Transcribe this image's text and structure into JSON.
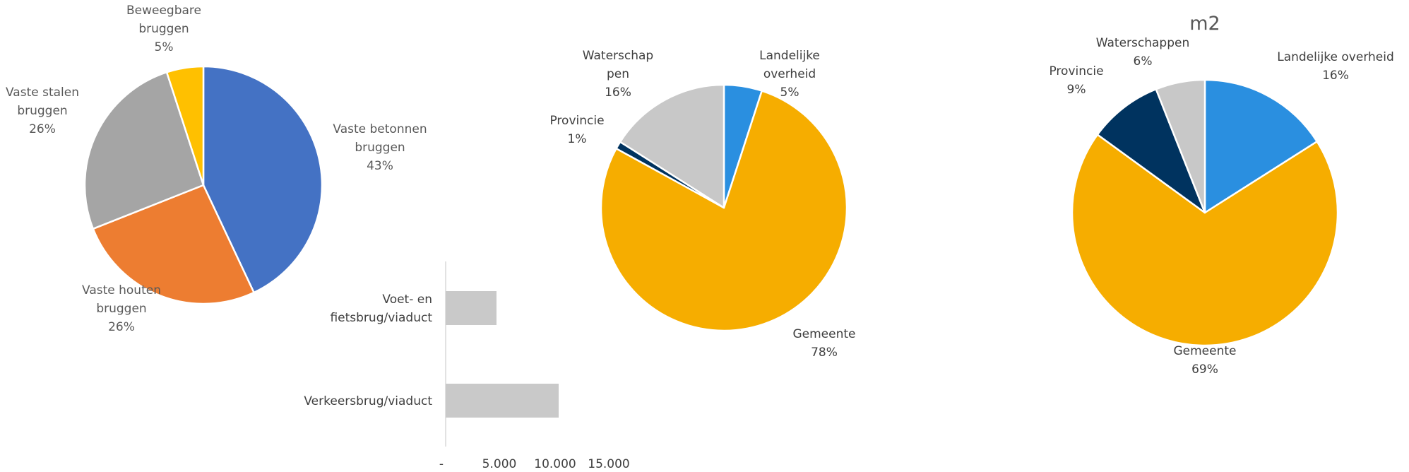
{
  "chart_data": [
    {
      "type": "pie",
      "title": "",
      "slices": [
        {
          "label": [
            "Vaste betonnen",
            "bruggen"
          ],
          "pct": "43%",
          "value": 43,
          "color": "#4472c4"
        },
        {
          "label": [
            "Vaste houten",
            "bruggen"
          ],
          "pct": "26%",
          "value": 26,
          "color": "#ed7d31"
        },
        {
          "label": [
            "Vaste stalen",
            "bruggen"
          ],
          "pct": "26%",
          "value": 26,
          "color": "#a5a5a5"
        },
        {
          "label": [
            "Beweegbare",
            "bruggen"
          ],
          "pct": "5%",
          "value": 5,
          "color": "#ffc000"
        }
      ]
    },
    {
      "type": "bar",
      "orientation": "horizontal",
      "categories": [
        [
          "Voet- en",
          "fietsbrug/viaduct"
        ],
        [
          "Verkeersbrug/viaduct"
        ]
      ],
      "values": [
        4500,
        10000
      ],
      "xlim": [
        0,
        15000
      ],
      "xticks": [
        "-",
        "5.000",
        "10.000",
        "15.000"
      ],
      "color": "#c9c9c9"
    },
    {
      "type": "pie",
      "title": "",
      "slices": [
        {
          "label": [
            "Landelijke",
            "overheid"
          ],
          "pct": "5%",
          "value": 5,
          "color": "#2a8fe0"
        },
        {
          "label": [
            "Gemeente"
          ],
          "pct": "78%",
          "value": 78,
          "color": "#f6ad00"
        },
        {
          "label": [
            "Provincie"
          ],
          "pct": "1%",
          "value": 1,
          "color": "#00335f"
        },
        {
          "label": [
            "Waterschap",
            "pen"
          ],
          "pct": "16%",
          "value": 16,
          "color": "#c8c8c8"
        }
      ]
    },
    {
      "type": "pie",
      "title": "m2",
      "slices": [
        {
          "label": [
            "Landelijke overheid"
          ],
          "pct": "16%",
          "value": 16,
          "color": "#2a8fe0"
        },
        {
          "label": [
            "Gemeente"
          ],
          "pct": "69%",
          "value": 69,
          "color": "#f6ad00"
        },
        {
          "label": [
            "Provincie"
          ],
          "pct": "9%",
          "value": 9,
          "color": "#00335f"
        },
        {
          "label": [
            "Waterschappen"
          ],
          "pct": "6%",
          "value": 6,
          "color": "#c8c8c8"
        }
      ]
    }
  ]
}
